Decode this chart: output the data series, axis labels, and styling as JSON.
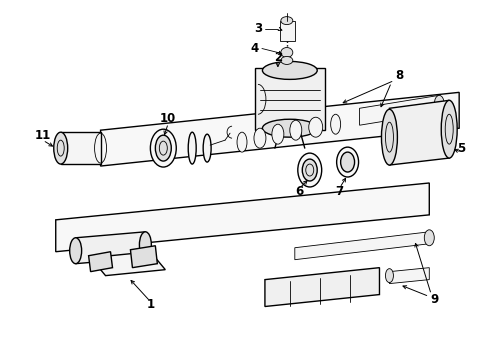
{
  "bg_color": "#ffffff",
  "line_color": "#000000",
  "figsize": [
    4.9,
    3.6
  ],
  "dpi": 100,
  "lw_main": 1.0,
  "lw_thin": 0.6
}
